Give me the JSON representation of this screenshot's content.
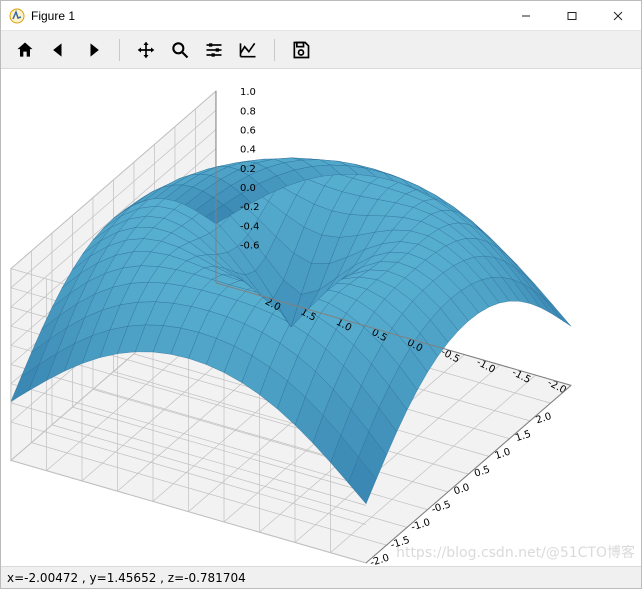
{
  "window": {
    "title": "Figure 1",
    "minimize_glyph": "—",
    "maximize_glyph": "☐",
    "close_glyph": "✕"
  },
  "toolbar": {
    "home_name": "home-icon",
    "back_name": "back-icon",
    "forward_name": "forward-icon",
    "pan_name": "pan-icon",
    "zoom_name": "zoom-icon",
    "configure_name": "configure-subplots-icon",
    "axes_name": "edit-axes-icon",
    "save_name": "save-icon"
  },
  "statusbar": {
    "text": "x=-2.00472    , y=1.45652    , z=-0.781704"
  },
  "watermark": {
    "text": "https://blog.csdn.net/@51CTO博客"
  },
  "plot": {
    "type": "3d-surface",
    "function": "sin(sqrt(x^2+y^2))",
    "x_range": [
      -2.5,
      2.5
    ],
    "y_range": [
      -2.5,
      2.5
    ],
    "z_range": [
      -1.0,
      1.0
    ],
    "x_tick_labels": [
      "-2.0",
      "-1.5",
      "-1.0",
      "-0.5",
      "0.0",
      "0.5",
      "1.0",
      "1.5",
      "2.0"
    ],
    "y_tick_labels": [
      "-2.0",
      "-1.5",
      "-1.0",
      "-0.5",
      "0.0",
      "0.5",
      "1.0",
      "1.5",
      "2.0"
    ],
    "z_tick_labels": [
      "-0.6",
      "-0.4",
      "-0.2",
      "0.0",
      "0.2",
      "0.4",
      "0.6",
      "0.8",
      "1.0"
    ],
    "axis_label_fontsize": 10,
    "grid_color": "#c0c0c0",
    "pane_color": "#f2f2f2",
    "surface_color": "#2f78a8",
    "wire_color": "#2a6893",
    "background_color": "#ffffff",
    "azimuth_deg": -60,
    "elevation_deg": 30,
    "mesh_n": 21
  }
}
